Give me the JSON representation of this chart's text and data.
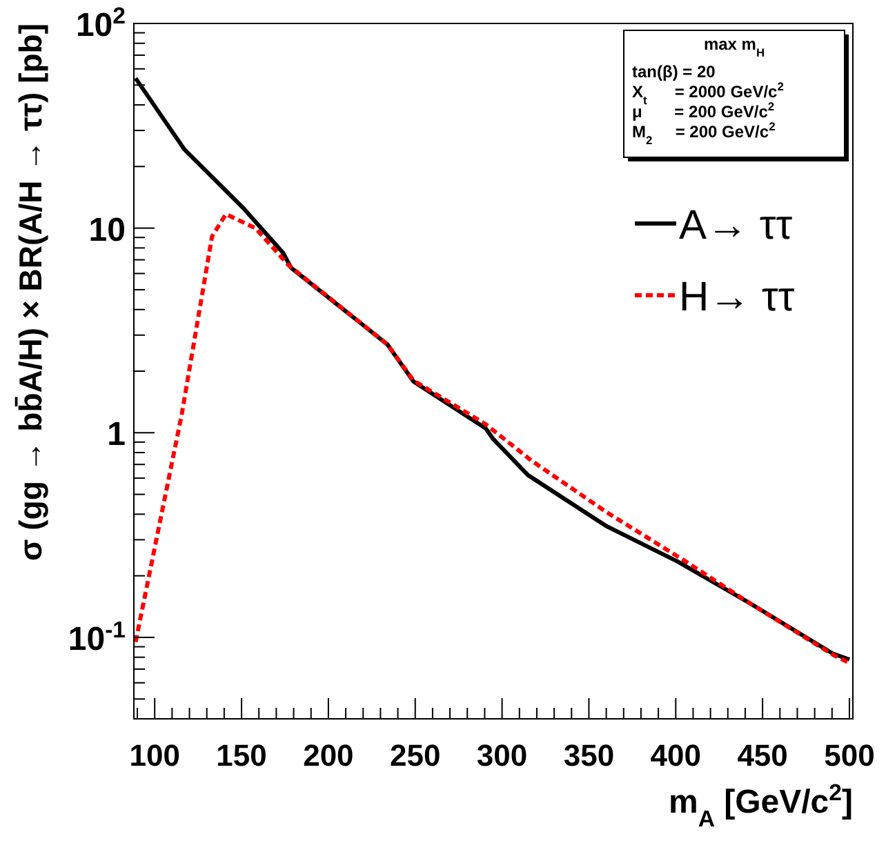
{
  "chart_data": {
    "type": "line",
    "xlabel": "m$_{A}$ [GeV/c$^{2}$]",
    "ylabel": "σ (gg → bb̄A/H) × BR(A/H → ττ) [pb]",
    "log": "y",
    "grid": false,
    "legend": "top right",
    "xlim": [
      88,
      502
    ],
    "ylim": [
      0.04,
      100
    ],
    "xticks": [
      {
        "value": 90,
        "label": null
      },
      100,
      {
        "value": 110,
        "label": null
      },
      {
        "value": 120,
        "label": null
      },
      {
        "value": 130,
        "label": null
      },
      {
        "value": 140,
        "label": null
      },
      150,
      {
        "value": 160,
        "label": null
      },
      {
        "value": 170,
        "label": null
      },
      {
        "value": 180,
        "label": null
      },
      {
        "value": 190,
        "label": null
      },
      200,
      {
        "value": 210,
        "label": null
      },
      {
        "value": 220,
        "label": null
      },
      {
        "value": 230,
        "label": null
      },
      {
        "value": 240,
        "label": null
      },
      250,
      {
        "value": 260,
        "label": null
      },
      {
        "value": 270,
        "label": null
      },
      {
        "value": 280,
        "label": null
      },
      {
        "value": 290,
        "label": null
      },
      300,
      {
        "value": 310,
        "label": null
      },
      {
        "value": 320,
        "label": null
      },
      {
        "value": 330,
        "label": null
      },
      {
        "value": 340,
        "label": null
      },
      350,
      {
        "value": 360,
        "label": null
      },
      {
        "value": 370,
        "label": null
      },
      {
        "value": 380,
        "label": null
      },
      {
        "value": 390,
        "label": null
      },
      400,
      {
        "value": 410,
        "label": null
      },
      {
        "value": 420,
        "label": null
      },
      {
        "value": 430,
        "label": null
      },
      {
        "value": 440,
        "label": null
      },
      450,
      {
        "value": 460,
        "label": null
      },
      {
        "value": 470,
        "label": null
      },
      {
        "value": 480,
        "label": null
      },
      {
        "value": 490,
        "label": null
      },
      500
    ],
    "yticks": [
      {
        "value": 0.05,
        "label": null
      },
      {
        "value": 0.06,
        "label": null
      },
      {
        "value": 0.07,
        "label": null
      },
      {
        "value": 0.08,
        "label": null
      },
      {
        "value": 0.09,
        "label": null
      },
      {
        "value": 0.1,
        "label": "10$^{-1}$"
      },
      {
        "value": 0.2,
        "label": null
      },
      {
        "value": 0.3,
        "label": null
      },
      {
        "value": 0.4,
        "label": null
      },
      {
        "value": 0.5,
        "label": null
      },
      {
        "value": 0.6,
        "label": null
      },
      {
        "value": 0.7,
        "label": null
      },
      {
        "value": 0.8,
        "label": null
      },
      {
        "value": 0.9,
        "label": null
      },
      1,
      {
        "value": 2,
        "label": null
      },
      {
        "value": 3,
        "label": null
      },
      {
        "value": 4,
        "label": null
      },
      {
        "value": 5,
        "label": null
      },
      {
        "value": 6,
        "label": null
      },
      {
        "value": 7,
        "label": null
      },
      {
        "value": 8,
        "label": null
      },
      {
        "value": 9,
        "label": null
      },
      10,
      {
        "value": 20,
        "label": null
      },
      {
        "value": 30,
        "label": null
      },
      {
        "value": 40,
        "label": null
      },
      {
        "value": 50,
        "label": null
      },
      {
        "value": 60,
        "label": null
      },
      {
        "value": 70,
        "label": null
      },
      {
        "value": 80,
        "label": null
      },
      {
        "value": 90,
        "label": null
      },
      {
        "value": 100,
        "label": "10$^{2}$"
      }
    ],
    "series": [
      {
        "name": "A→ ττ",
        "color": "#000000",
        "line_style": "solid",
        "x": [
          89,
          117,
          151.5,
          174,
          178.5,
          234,
          249,
          290.6,
          295,
          315,
          360,
          401,
          442,
          490.8,
          500
        ],
        "values": [
          54,
          24.3,
          12.4,
          7.55,
          6.4,
          2.7,
          1.78,
          1.05,
          0.93,
          0.62,
          0.35,
          0.235,
          0.148,
          0.083,
          0.078
        ]
      },
      {
        "name": "H→ ττ",
        "color": "#ff0000",
        "line_style": "dashed",
        "x": [
          89,
          115.5,
          133,
          141,
          158,
          177,
          234,
          249,
          290.6,
          317,
          360,
          404,
          442,
          490.8,
          500
        ],
        "values": [
          0.095,
          1.22,
          9.1,
          11.7,
          10,
          6.6,
          2.7,
          1.8,
          1.1,
          0.73,
          0.41,
          0.24,
          0.148,
          0.082,
          0.075
        ]
      }
    ],
    "annotations": [
      "max m$_{H}$",
      "tan(β) = 20",
      "X$_{t}$      = 2000 GeV/c$^{2}$",
      "μ       = 200 GeV/c$^{2}$",
      "M$_{2}$     = 200 GeV/c$^{2}$"
    ]
  }
}
